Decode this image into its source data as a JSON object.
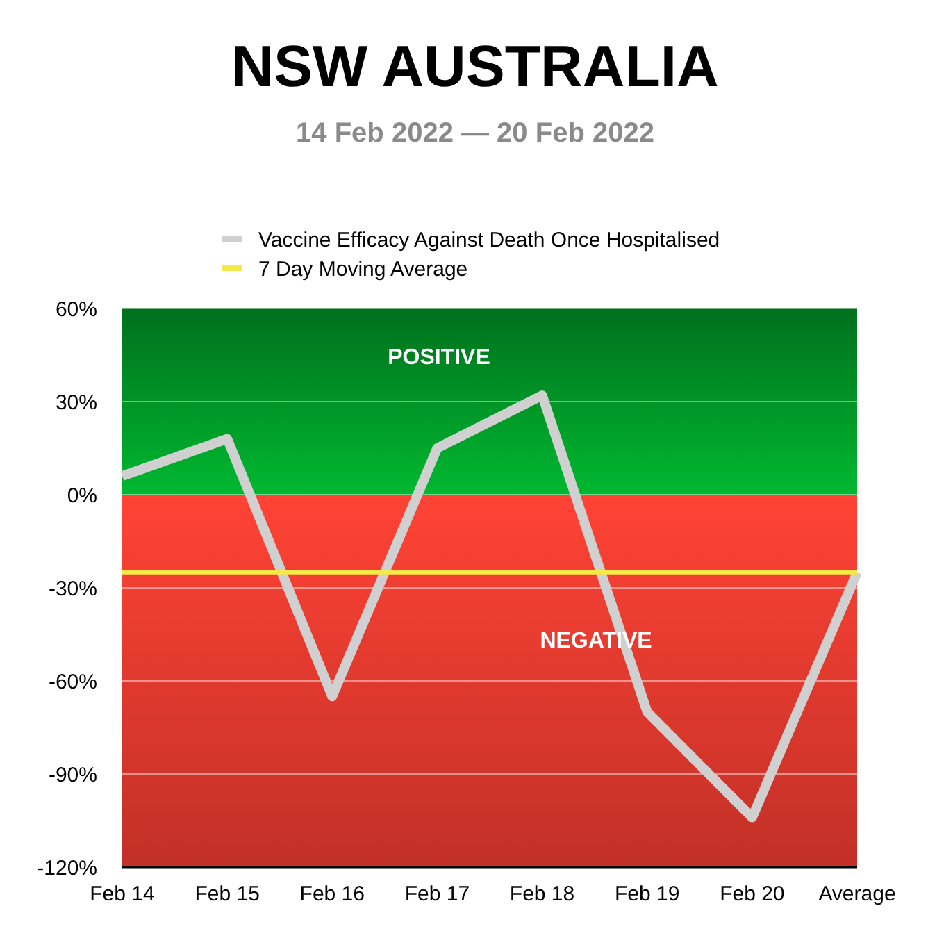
{
  "chart_data": {
    "type": "line",
    "title": "NSW AUSTRALIA",
    "subtitle": "14 Feb 2022 — 20 Feb 2022",
    "categories": [
      "Feb 14",
      "Feb 15",
      "Feb 16",
      "Feb 17",
      "Feb 18",
      "Feb 19",
      "Feb 20",
      "Average"
    ],
    "series": [
      {
        "name": "Vaccine Efficacy Against Death Once Hospitalised",
        "color": "#d0d0d0",
        "values": [
          6,
          18,
          -65,
          15,
          32,
          -70,
          -104,
          -25
        ]
      },
      {
        "name": "7 Day Moving Average",
        "color": "#f5e94a",
        "values": [
          -25,
          -25,
          -25,
          -25,
          -25,
          -25,
          -25,
          -25
        ]
      }
    ],
    "ylim": [
      -120,
      60
    ],
    "yticks": [
      {
        "value": 60,
        "label": "60%"
      },
      {
        "value": 30,
        "label": "30%"
      },
      {
        "value": 0,
        "label": "0%"
      },
      {
        "value": -30,
        "label": "-30%"
      },
      {
        "value": -60,
        "label": "-60%"
      },
      {
        "value": -90,
        "label": "-90%"
      },
      {
        "value": -120,
        "label": "-120%"
      }
    ],
    "bands": [
      {
        "axis": "y",
        "from": 0,
        "to": 60,
        "label": "POSITIVE",
        "color": "#00b830"
      },
      {
        "axis": "y",
        "from": -120,
        "to": 0,
        "label": "NEGATIVE",
        "color": "#f03c30"
      }
    ],
    "grid": "y",
    "legend": "top left",
    "marker": "none",
    "line_style": "solid"
  }
}
